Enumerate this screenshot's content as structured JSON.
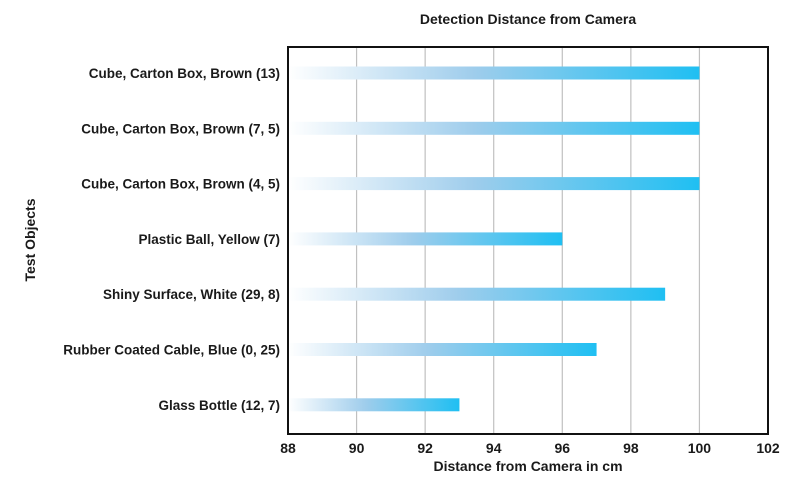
{
  "chart_data": {
    "type": "bar",
    "orientation": "horizontal",
    "title": "Detection Distance from Camera",
    "xlabel": "Distance from Camera in cm",
    "ylabel": "Test Objects",
    "xlim": [
      88,
      102
    ],
    "xticks": [
      88,
      90,
      92,
      94,
      96,
      98,
      100,
      102
    ],
    "grid": "vertical",
    "categories": [
      "Cube, Carton Box, Brown (13)",
      "Cube, Carton Box, Brown (7, 5)",
      "Cube, Carton Box, Brown (4, 5)",
      "Plastic Ball, Yellow (7)",
      "Shiny Surface, White (29, 8)",
      "Rubber Coated Cable, Blue (0, 25)",
      "Glass Bottle (12, 7)"
    ],
    "values": [
      100,
      100,
      100,
      96,
      99,
      97,
      93
    ],
    "colors": {
      "bar_start": "#ffffff",
      "bar_end": "#1fbff2",
      "grid": "#c0c0c0",
      "frame": "#111111",
      "text": "#1a1a1a"
    }
  }
}
